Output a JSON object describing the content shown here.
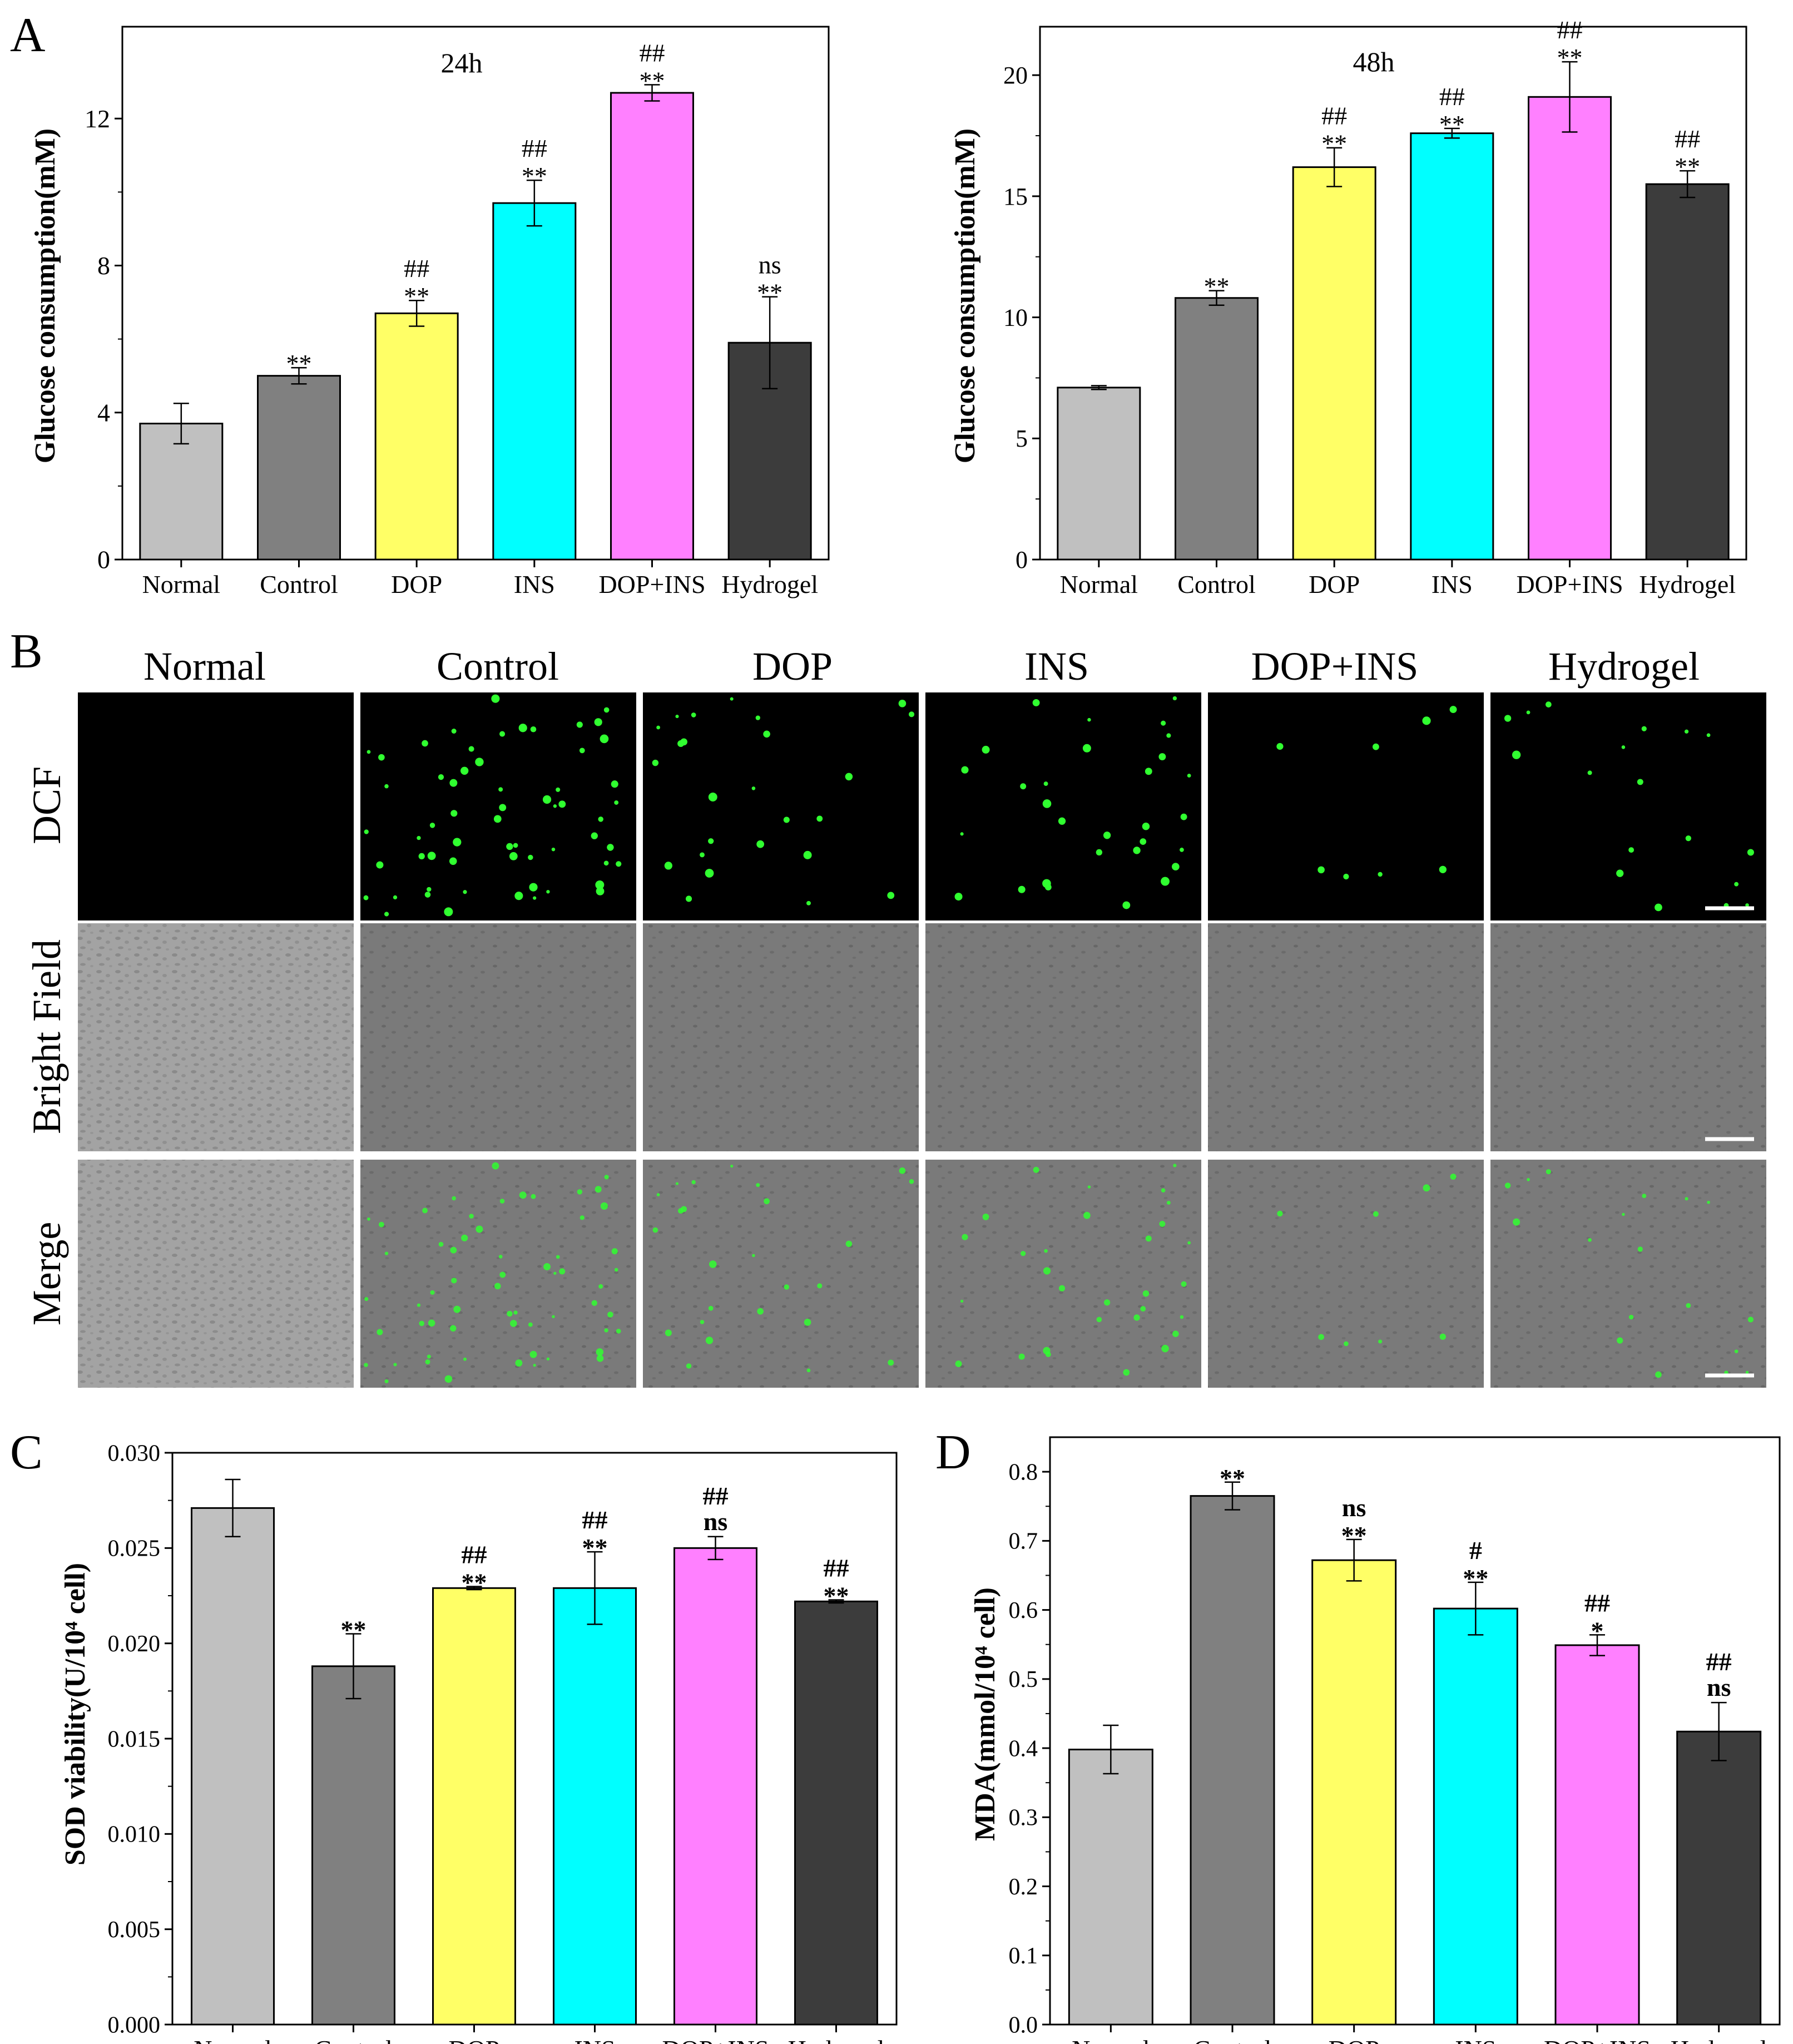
{
  "panel_letters": {
    "a": "A",
    "b": "B",
    "c": "C",
    "d": "D"
  },
  "colors": {
    "bars": [
      "#c0c0c0",
      "#808080",
      "#ffff66",
      "#00ffff",
      "#ff80ff",
      "#3c3c3c"
    ],
    "dots": "#30ff30",
    "dark_image": "#000000",
    "bright_image": "#7a7a7a"
  },
  "chart_data": [
    {
      "id": "chart-24h",
      "type": "bar",
      "title": "24h",
      "ylabel": "Glucose consumption(mM)",
      "categories": [
        "Normal",
        "Control",
        "DOP",
        "INS",
        "DOP+INS",
        "Hydrogel"
      ],
      "values": [
        3.7,
        5.0,
        6.7,
        9.7,
        12.7,
        5.9
      ],
      "errors": [
        0.55,
        0.22,
        0.35,
        0.62,
        0.22,
        1.25
      ],
      "annotations": [
        [],
        [
          "**"
        ],
        [
          "##",
          "**"
        ],
        [
          "##",
          "**"
        ],
        [
          "##",
          "**"
        ],
        [
          "ns",
          "**"
        ]
      ],
      "ylim": [
        0,
        14.5
      ],
      "yticks": [
        0,
        4,
        8,
        12
      ],
      "tick_labels": [
        "0",
        "4",
        "8",
        "12"
      ]
    },
    {
      "id": "chart-48h",
      "type": "bar",
      "title": "48h",
      "ylabel": "Glucose consumption(mM)",
      "categories": [
        "Normal",
        "Control",
        "DOP",
        "INS",
        "DOP+INS",
        "Hydrogel"
      ],
      "values": [
        7.1,
        10.8,
        16.2,
        17.6,
        19.1,
        15.5
      ],
      "errors": [
        0.08,
        0.3,
        0.8,
        0.2,
        1.45,
        0.55
      ],
      "annotations": [
        [],
        [
          "**"
        ],
        [
          "##",
          "**"
        ],
        [
          "##",
          "**"
        ],
        [
          "##",
          "**"
        ],
        [
          "##",
          "**"
        ]
      ],
      "ylim": [
        0,
        22
      ],
      "yticks": [
        0,
        5,
        10,
        15,
        20
      ],
      "tick_labels": [
        "0",
        "5",
        "10",
        "15",
        "20"
      ]
    },
    {
      "id": "chart-sod",
      "type": "bar",
      "title": "",
      "ylabel": "SOD viability(U/10⁴ cell)",
      "categories": [
        "Normal",
        "Control",
        "DOP",
        "INS",
        "DOP+INS",
        "Hydrogel"
      ],
      "values": [
        0.0271,
        0.0188,
        0.0229,
        0.0229,
        0.025,
        0.0222
      ],
      "errors": [
        0.0015,
        0.0017,
        8e-05,
        0.0019,
        0.0006,
        8e-05
      ],
      "annotations": [
        [],
        [
          "**"
        ],
        [
          "##",
          "**"
        ],
        [
          "##",
          "**"
        ],
        [
          "##",
          "ns"
        ],
        [
          "##",
          "**"
        ]
      ],
      "ylim": [
        0,
        0.03
      ],
      "yticks": [
        0,
        0.005,
        0.01,
        0.015,
        0.02,
        0.025,
        0.03
      ],
      "tick_labels": [
        "0.000",
        "0.005",
        "0.010",
        "0.015",
        "0.020",
        "0.025",
        "0.030"
      ]
    },
    {
      "id": "chart-mda",
      "type": "bar",
      "title": "",
      "ylabel": "MDA(mmol/10⁴ cell)",
      "categories": [
        "Normal",
        "Control",
        "DOP",
        "INS",
        "DOP+INS",
        "Hydrogel"
      ],
      "values": [
        0.398,
        0.765,
        0.672,
        0.602,
        0.549,
        0.424
      ],
      "errors": [
        0.035,
        0.02,
        0.03,
        0.038,
        0.015,
        0.042
      ],
      "annotations": [
        [],
        [
          "**"
        ],
        [
          "ns",
          "**"
        ],
        [
          "#",
          "**"
        ],
        [
          "##",
          "*"
        ],
        [
          "##",
          "ns"
        ]
      ],
      "ylim": [
        0,
        0.85
      ],
      "yticks": [
        0,
        0.1,
        0.2,
        0.3,
        0.4,
        0.5,
        0.6,
        0.7,
        0.8
      ],
      "tick_labels": [
        "0.0",
        "0.1",
        "0.2",
        "0.3",
        "0.4",
        "0.5",
        "0.6",
        "0.7",
        "0.8"
      ]
    }
  ],
  "microscopy": {
    "columns": [
      "Normal",
      "Control",
      "DOP",
      "INS",
      "DOP+INS",
      "Hydrogel"
    ],
    "rows": [
      "DCF",
      "Bright Field",
      "Merge"
    ],
    "cell_density": [
      0,
      60,
      25,
      30,
      8,
      18
    ]
  }
}
